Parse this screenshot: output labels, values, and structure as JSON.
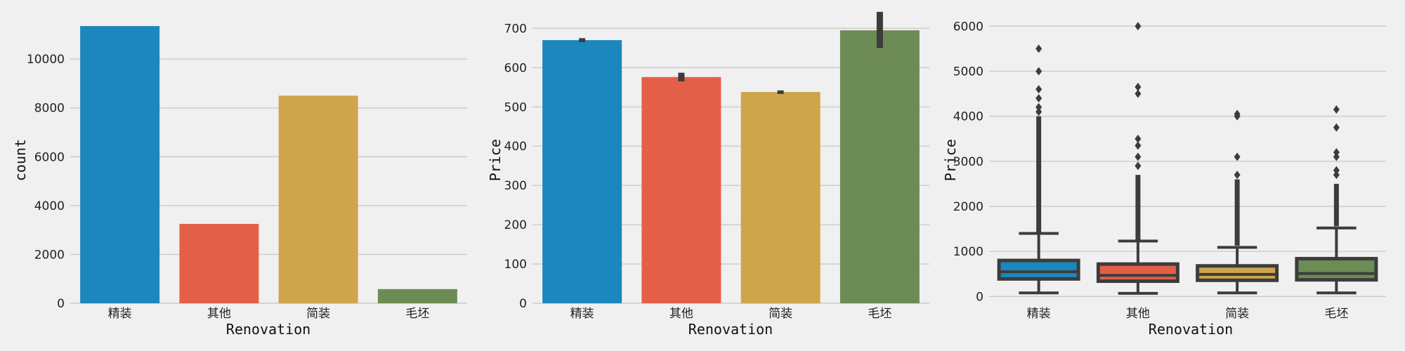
{
  "colors": {
    "background": "#f0f0f0",
    "grid": "#cbcbcb",
    "series": [
      "#1b87bd",
      "#e45f48",
      "#cfa54b",
      "#6d8b55"
    ],
    "whisker": "#3c3c3c"
  },
  "chart_data": [
    {
      "type": "bar",
      "categories": [
        "精装",
        "其他",
        "简装",
        "毛坯"
      ],
      "values": [
        11350,
        3250,
        8500,
        580
      ],
      "xlabel": "Renovation",
      "ylabel": "count",
      "ylim": [
        0,
        11900
      ],
      "yticks": [
        0,
        2000,
        4000,
        6000,
        8000,
        10000
      ],
      "grid": true
    },
    {
      "type": "bar",
      "categories": [
        "精装",
        "其他",
        "简装",
        "毛坯"
      ],
      "values": [
        670,
        576,
        538,
        695
      ],
      "error_bars": [
        [
          665,
          675
        ],
        [
          565,
          587
        ],
        [
          533,
          542
        ],
        [
          650,
          742
        ]
      ],
      "xlabel": "Renovation",
      "ylabel": "Price",
      "ylim": [
        0,
        740
      ],
      "yticks": [
        0,
        100,
        200,
        300,
        400,
        500,
        600,
        700
      ],
      "grid": true
    },
    {
      "type": "box",
      "categories": [
        "精装",
        "其他",
        "简装",
        "毛坯"
      ],
      "boxes": [
        {
          "whislo": 80,
          "q1": 390,
          "med": 550,
          "q3": 800,
          "whishi": 1400,
          "outliers_range": [
            1430,
            4000
          ],
          "outliers": [
            4100,
            4200,
            4400,
            4600,
            5000,
            5500
          ]
        },
        {
          "whislo": 70,
          "q1": 340,
          "med": 470,
          "q3": 720,
          "whishi": 1230,
          "outliers_range": [
            1260,
            2700
          ],
          "outliers": [
            2900,
            3100,
            3350,
            3500,
            4500,
            4650,
            6000
          ]
        },
        {
          "whislo": 80,
          "q1": 360,
          "med": 490,
          "q3": 680,
          "whishi": 1090,
          "outliers_range": [
            1130,
            2600
          ],
          "outliers": [
            2700,
            3100,
            4000,
            4050
          ]
        },
        {
          "whislo": 80,
          "q1": 370,
          "med": 510,
          "q3": 840,
          "whishi": 1520,
          "outliers_range": [
            1560,
            2500
          ],
          "outliers": [
            2700,
            2800,
            3100,
            3200,
            3750,
            4150
          ]
        }
      ],
      "xlabel": "Renovation",
      "ylabel": "Price",
      "ylim": [
        -150,
        6300
      ],
      "yticks": [
        0,
        1000,
        2000,
        3000,
        4000,
        5000,
        6000
      ],
      "grid": true
    }
  ]
}
